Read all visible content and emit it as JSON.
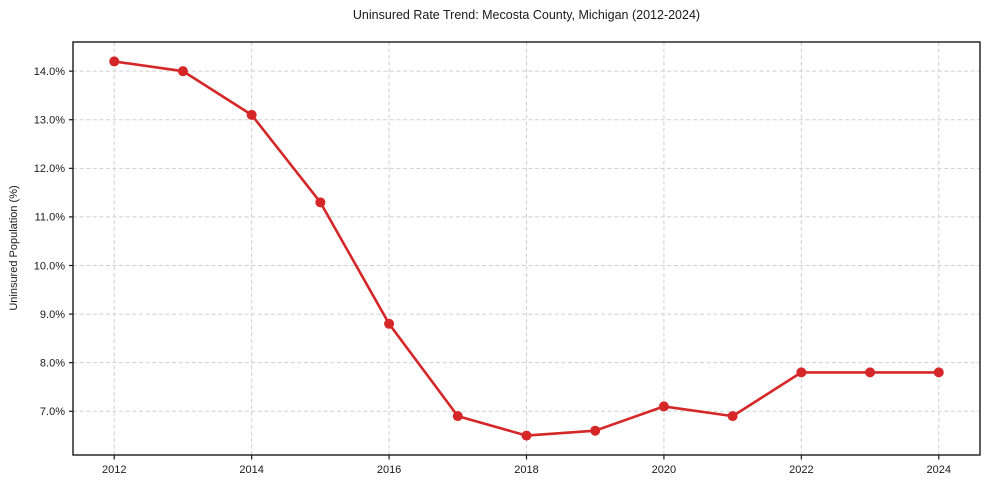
{
  "figure": {
    "background": "#ffffff"
  },
  "chart_data": {
    "type": "line",
    "title": "Uninsured Rate Trend: Mecosta County, Michigan (2012-2024)",
    "xlabel": "",
    "ylabel": "Uninsured Population (%)",
    "x": [
      2012,
      2013,
      2014,
      2015,
      2016,
      2017,
      2018,
      2019,
      2020,
      2021,
      2022,
      2023,
      2024
    ],
    "series": [
      {
        "name": "Uninsured rate",
        "values": [
          14.2,
          14.0,
          13.1,
          11.3,
          8.8,
          6.9,
          6.5,
          6.6,
          7.1,
          6.9,
          7.8,
          7.8,
          7.8
        ]
      }
    ],
    "x_ticks": [
      2012,
      2014,
      2016,
      2018,
      2020,
      2022,
      2024
    ],
    "x_tick_labels": [
      "2012",
      "2014",
      "2016",
      "2018",
      "2020",
      "2022",
      "2024"
    ],
    "y_ticks": [
      7,
      8,
      9,
      10,
      11,
      12,
      13,
      14
    ],
    "y_tick_labels": [
      "7.0%",
      "8.0%",
      "9.0%",
      "10.0%",
      "11.0%",
      "12.0%",
      "13.0%",
      "14.0%"
    ],
    "xlim": [
      2011.4,
      2024.6
    ],
    "ylim": [
      6.1,
      14.6
    ],
    "grid": true,
    "grid_style": "dashed",
    "legend": null,
    "line_color": "#d62728",
    "marker": "circle",
    "marker_radius": 5,
    "line_width": 2.6,
    "grid_color": "#cfcfcf",
    "spine_color": "#1a1a1a",
    "text_color": "#1a1a1a"
  }
}
